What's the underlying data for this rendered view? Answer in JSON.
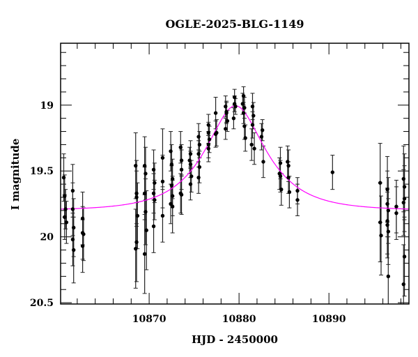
{
  "chart_data": {
    "type": "scatter",
    "title": "OGLE-2025-BLG-1149",
    "xlabel": "HJD - 2450000",
    "ylabel": "I magnitude",
    "xlim": [
      10860.15,
      10898.9
    ],
    "ylim": [
      20.51,
      18.53
    ],
    "y_inverted": true,
    "x_ticks": [
      10870,
      10880,
      10890
    ],
    "y_ticks": [
      19,
      19.5,
      20,
      20.5
    ],
    "y_tick_labels": [
      "19",
      "19.5",
      "20",
      "20.5"
    ],
    "x_tick_labels": [
      "10870",
      "10880",
      "10890"
    ],
    "grid": false,
    "colors": {
      "points": "#000000",
      "model": "#ff00ff"
    },
    "model": {
      "type": "Paczynski point-lens",
      "t0": 10879.6,
      "u0": 0.53,
      "tE": 5.6,
      "baseline_mag": 19.8
    },
    "points": [
      [
        10860.5,
        19.55,
        0.18
      ],
      [
        10860.6,
        19.69,
        0.16
      ],
      [
        10860.7,
        19.79,
        0.15
      ],
      [
        10860.6,
        19.85,
        0.17
      ],
      [
        10860.8,
        19.89,
        0.16
      ],
      [
        10861.5,
        19.65,
        0.2
      ],
      [
        10861.5,
        19.79,
        0.2
      ],
      [
        10861.6,
        19.93,
        0.22
      ],
      [
        10861.5,
        20.02,
        0.2
      ],
      [
        10861.6,
        20.1,
        0.25
      ],
      [
        10862.6,
        19.86,
        0.2
      ],
      [
        10862.6,
        19.97,
        0.2
      ],
      [
        10862.7,
        19.98,
        0.2
      ],
      [
        10862.6,
        20.07,
        0.2
      ],
      [
        10868.5,
        19.46,
        0.25
      ],
      [
        10868.6,
        19.67,
        0.25
      ],
      [
        10868.6,
        19.7,
        0.2
      ],
      [
        10868.7,
        19.84,
        0.25
      ],
      [
        10868.6,
        20.04,
        0.3
      ],
      [
        10868.5,
        20.09,
        0.3
      ],
      [
        10869.5,
        19.46,
        0.22
      ],
      [
        10869.6,
        19.52,
        0.2
      ],
      [
        10869.5,
        19.67,
        0.2
      ],
      [
        10869.6,
        19.81,
        0.25
      ],
      [
        10869.7,
        19.95,
        0.3
      ],
      [
        10869.5,
        20.13,
        0.3
      ],
      [
        10870.5,
        19.49,
        0.15
      ],
      [
        10870.6,
        19.59,
        0.15
      ],
      [
        10870.5,
        19.67,
        0.15
      ],
      [
        10870.6,
        19.72,
        0.15
      ],
      [
        10870.5,
        19.92,
        0.2
      ],
      [
        10871.5,
        19.4,
        0.22
      ],
      [
        10871.5,
        19.58,
        0.2
      ],
      [
        10871.5,
        19.84,
        0.2
      ],
      [
        10872.4,
        19.35,
        0.15
      ],
      [
        10872.5,
        19.45,
        0.15
      ],
      [
        10872.6,
        19.56,
        0.15
      ],
      [
        10872.5,
        19.61,
        0.15
      ],
      [
        10872.6,
        19.69,
        0.15
      ],
      [
        10872.4,
        19.75,
        0.15
      ],
      [
        10872.6,
        19.77,
        0.2
      ],
      [
        10873.5,
        19.32,
        0.12
      ],
      [
        10873.6,
        19.42,
        0.12
      ],
      [
        10873.6,
        19.49,
        0.15
      ],
      [
        10873.5,
        19.67,
        0.15
      ],
      [
        10873.6,
        19.68,
        0.15
      ],
      [
        10874.6,
        19.37,
        0.1
      ],
      [
        10874.5,
        19.42,
        0.1
      ],
      [
        10874.6,
        19.45,
        0.1
      ],
      [
        10874.7,
        19.54,
        0.12
      ],
      [
        10874.6,
        19.6,
        0.12
      ],
      [
        10875.5,
        19.24,
        0.1
      ],
      [
        10875.6,
        19.3,
        0.1
      ],
      [
        10875.5,
        19.37,
        0.1
      ],
      [
        10875.6,
        19.47,
        0.12
      ],
      [
        10875.5,
        19.55,
        0.12
      ],
      [
        10876.6,
        19.15,
        0.08
      ],
      [
        10876.6,
        19.21,
        0.08
      ],
      [
        10876.7,
        19.26,
        0.1
      ],
      [
        10876.6,
        19.3,
        0.1
      ],
      [
        10876.6,
        19.33,
        0.1
      ],
      [
        10877.4,
        19.06,
        0.12
      ],
      [
        10877.5,
        19.21,
        0.1
      ],
      [
        10877.4,
        19.22,
        0.1
      ],
      [
        10878.5,
        19.01,
        0.08
      ],
      [
        10878.6,
        19.05,
        0.08
      ],
      [
        10878.6,
        19.06,
        0.08
      ],
      [
        10878.7,
        19.12,
        0.08
      ],
      [
        10878.5,
        19.18,
        0.08
      ],
      [
        10879.5,
        18.94,
        0.06
      ],
      [
        10879.5,
        18.99,
        0.06
      ],
      [
        10879.6,
        19.01,
        0.06
      ],
      [
        10879.4,
        19.1,
        0.08
      ],
      [
        10880.5,
        18.93,
        0.07
      ],
      [
        10880.4,
        18.99,
        0.08
      ],
      [
        10880.6,
        19.02,
        0.08
      ],
      [
        10880.5,
        19.06,
        0.08
      ],
      [
        10880.6,
        19.16,
        0.1
      ],
      [
        10880.7,
        19.25,
        0.1
      ],
      [
        10881.5,
        19.01,
        0.1
      ],
      [
        10881.6,
        19.08,
        0.1
      ],
      [
        10881.5,
        19.15,
        0.1
      ],
      [
        10881.4,
        19.3,
        0.12
      ],
      [
        10881.7,
        19.33,
        0.12
      ],
      [
        10882.6,
        19.19,
        0.08
      ],
      [
        10882.5,
        19.24,
        0.1
      ],
      [
        10882.7,
        19.43,
        0.12
      ],
      [
        10884.6,
        19.44,
        0.12
      ],
      [
        10884.5,
        19.52,
        0.12
      ],
      [
        10884.6,
        19.54,
        0.12
      ],
      [
        10884.7,
        19.64,
        0.12
      ],
      [
        10885.4,
        19.43,
        0.12
      ],
      [
        10885.5,
        19.46,
        0.12
      ],
      [
        10885.5,
        19.55,
        0.12
      ],
      [
        10885.6,
        19.66,
        0.12
      ],
      [
        10886.5,
        19.65,
        0.1
      ],
      [
        10886.5,
        19.72,
        0.12
      ],
      [
        10890.4,
        19.51,
        0.13
      ],
      [
        10895.7,
        19.59,
        0.3
      ],
      [
        10895.7,
        19.89,
        0.3
      ],
      [
        10895.8,
        19.99,
        0.3
      ],
      [
        10896.5,
        19.64,
        0.25
      ],
      [
        10896.5,
        19.75,
        0.25
      ],
      [
        10896.6,
        19.8,
        0.25
      ],
      [
        10896.5,
        19.88,
        0.25
      ],
      [
        10896.5,
        19.91,
        0.25
      ],
      [
        10896.6,
        19.96,
        0.25
      ],
      [
        10896.6,
        20.3,
        0.3
      ],
      [
        10897.5,
        19.77,
        0.2
      ],
      [
        10897.5,
        19.82,
        0.2
      ],
      [
        10898.3,
        19.56,
        0.25
      ],
      [
        10898.4,
        19.62,
        0.25
      ],
      [
        10898.4,
        19.71,
        0.25
      ],
      [
        10898.3,
        19.74,
        0.25
      ],
      [
        10898.4,
        20.15,
        0.3
      ],
      [
        10898.3,
        20.36,
        0.3
      ]
    ]
  }
}
